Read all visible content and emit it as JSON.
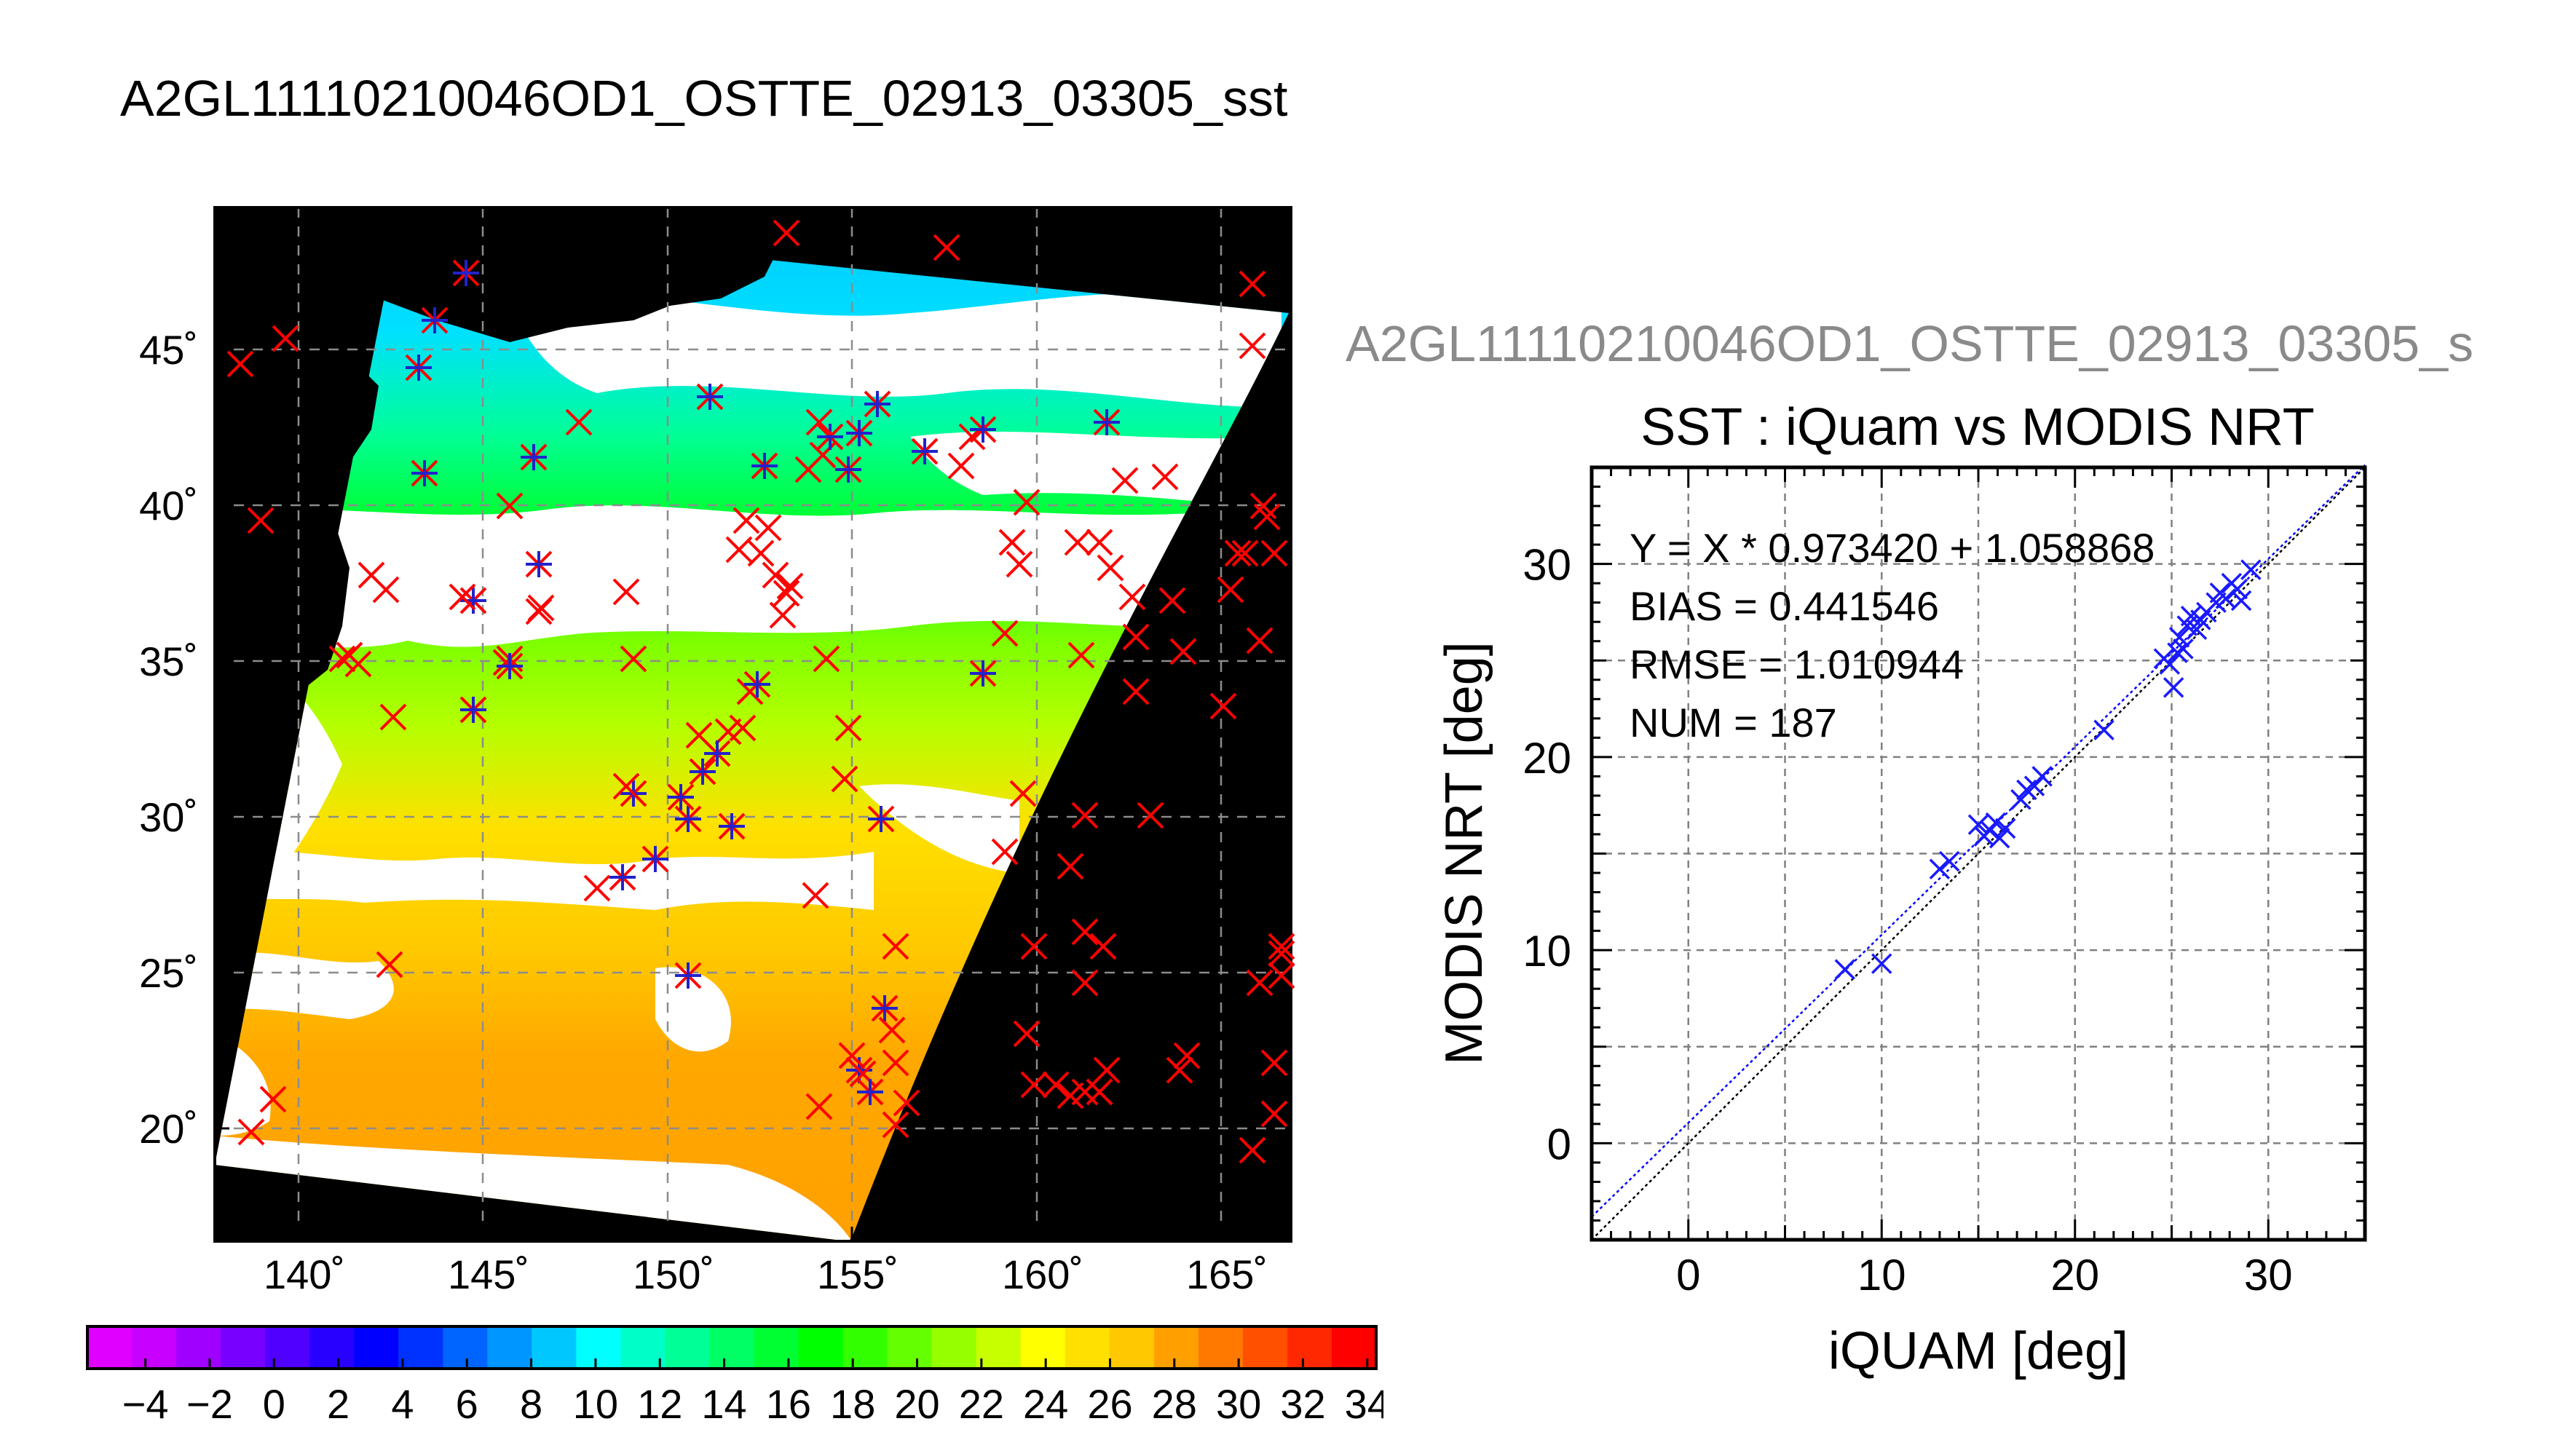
{
  "header": {
    "title": "A2GL11110210046OD1_OSTTE_02913_03305_sst",
    "sub_title": "A2GL11110210046OD1_OSTTE_02913_03305_s"
  },
  "map": {
    "lat_ticks": [
      "45˚",
      "40˚",
      "35˚",
      "30˚",
      "25˚",
      "20˚"
    ],
    "lon_ticks": [
      "140˚",
      "145˚",
      "150˚",
      "155˚",
      "160˚",
      "165˚"
    ]
  },
  "colorbar": {
    "ticks": [
      "−4",
      "−2",
      "0",
      "2",
      "4",
      "6",
      "8",
      "10",
      "12",
      "14",
      "16",
      "18",
      "20",
      "22",
      "24",
      "26",
      "28",
      "30",
      "32",
      "34"
    ],
    "colors": [
      "#e000ff",
      "#c800ff",
      "#a000ff",
      "#7800ff",
      "#5000ff",
      "#2800ff",
      "#0000ff",
      "#0032ff",
      "#0064ff",
      "#0096ff",
      "#00c8ff",
      "#00ffff",
      "#00ffc8",
      "#00ff96",
      "#00ff64",
      "#00ff32",
      "#00ff00",
      "#32ff00",
      "#64ff00",
      "#96ff00",
      "#c8ff00",
      "#ffff00",
      "#ffe000",
      "#ffc800",
      "#ffa000",
      "#ff7800",
      "#ff5000",
      "#ff2800",
      "#ff0000"
    ]
  },
  "chart_data": {
    "type": "scatter",
    "title": "SST : iQuam vs MODIS NRT",
    "xlabel": "iQUAM [deg]",
    "ylabel": "MODIS NRT [deg]",
    "xlim": [
      -5,
      35
    ],
    "ylim": [
      -5,
      35
    ],
    "x_ticks": [
      "0",
      "10",
      "20",
      "30"
    ],
    "y_ticks": [
      "0",
      "10",
      "20",
      "30"
    ],
    "grid": true,
    "stats": {
      "fit": "Y = X * 0.973420 + 1.058868",
      "bias": "BIAS = 0.441546",
      "rmse": "RMSE = 1.010944",
      "num": "NUM = 187"
    },
    "fit_line": {
      "slope": 0.97342,
      "intercept": 1.058868
    },
    "series": [
      {
        "points": [
          [
            8.1,
            9.0
          ],
          [
            10.0,
            9.3
          ],
          [
            13.0,
            14.2
          ],
          [
            13.5,
            14.6
          ],
          [
            15.0,
            16.5
          ],
          [
            15.3,
            15.9
          ],
          [
            15.6,
            16.2
          ],
          [
            15.9,
            16.6
          ],
          [
            16.1,
            15.8
          ],
          [
            16.4,
            16.3
          ],
          [
            17.2,
            17.8
          ],
          [
            17.5,
            18.3
          ],
          [
            17.9,
            18.5
          ],
          [
            18.3,
            19.0
          ],
          [
            21.5,
            21.4
          ],
          [
            24.6,
            25.1
          ],
          [
            24.9,
            24.8
          ],
          [
            25.1,
            23.6
          ],
          [
            25.3,
            25.4
          ],
          [
            25.4,
            26.2
          ],
          [
            25.6,
            25.6
          ],
          [
            25.8,
            26.8
          ],
          [
            26.0,
            27.3
          ],
          [
            26.3,
            26.6
          ],
          [
            26.5,
            27.1
          ],
          [
            26.8,
            27.5
          ],
          [
            27.3,
            28.0
          ],
          [
            27.5,
            28.5
          ],
          [
            27.8,
            28.2
          ],
          [
            28.1,
            29.0
          ],
          [
            28.4,
            28.7
          ],
          [
            28.6,
            28.1
          ],
          [
            29.1,
            29.7
          ]
        ]
      }
    ]
  }
}
